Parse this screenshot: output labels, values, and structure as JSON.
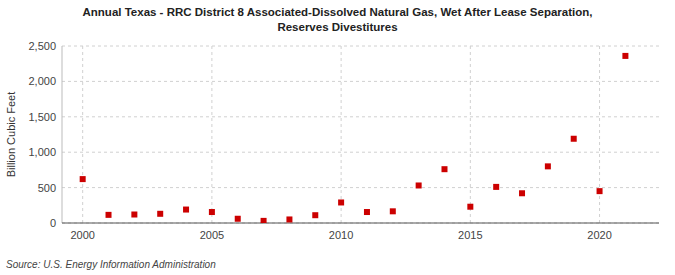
{
  "chart_data": {
    "type": "scatter",
    "title": "Annual Texas - RRC District 8 Associated-Dissolved Natural Gas, Wet After Lease Separation,\nReserves Divestitures",
    "y_label": "Billion Cubic Feet",
    "source": "Source: U.S. Energy Information Administration",
    "x": [
      2000,
      2001,
      2002,
      2003,
      2004,
      2005,
      2006,
      2007,
      2008,
      2009,
      2010,
      2011,
      2012,
      2013,
      2014,
      2015,
      2016,
      2017,
      2018,
      2019,
      2020,
      2021
    ],
    "values": [
      620,
      115,
      120,
      130,
      190,
      155,
      60,
      30,
      50,
      110,
      290,
      155,
      165,
      530,
      760,
      230,
      510,
      420,
      800,
      1190,
      450,
      2360
    ],
    "color": "#cc0000",
    "marker": "square",
    "xlim": [
      1999.2,
      2022.3
    ],
    "xticks": [
      2000,
      2005,
      2010,
      2015,
      2020
    ],
    "ylim": [
      0,
      2500
    ],
    "yticks": [
      0,
      500,
      {
        "value": 1000,
        "label": "1,000"
      },
      {
        "value": 1500,
        "label": "1,500"
      },
      {
        "value": 2000,
        "label": "2,000"
      },
      {
        "value": 2500,
        "label": "2,500"
      }
    ],
    "grid": true
  }
}
